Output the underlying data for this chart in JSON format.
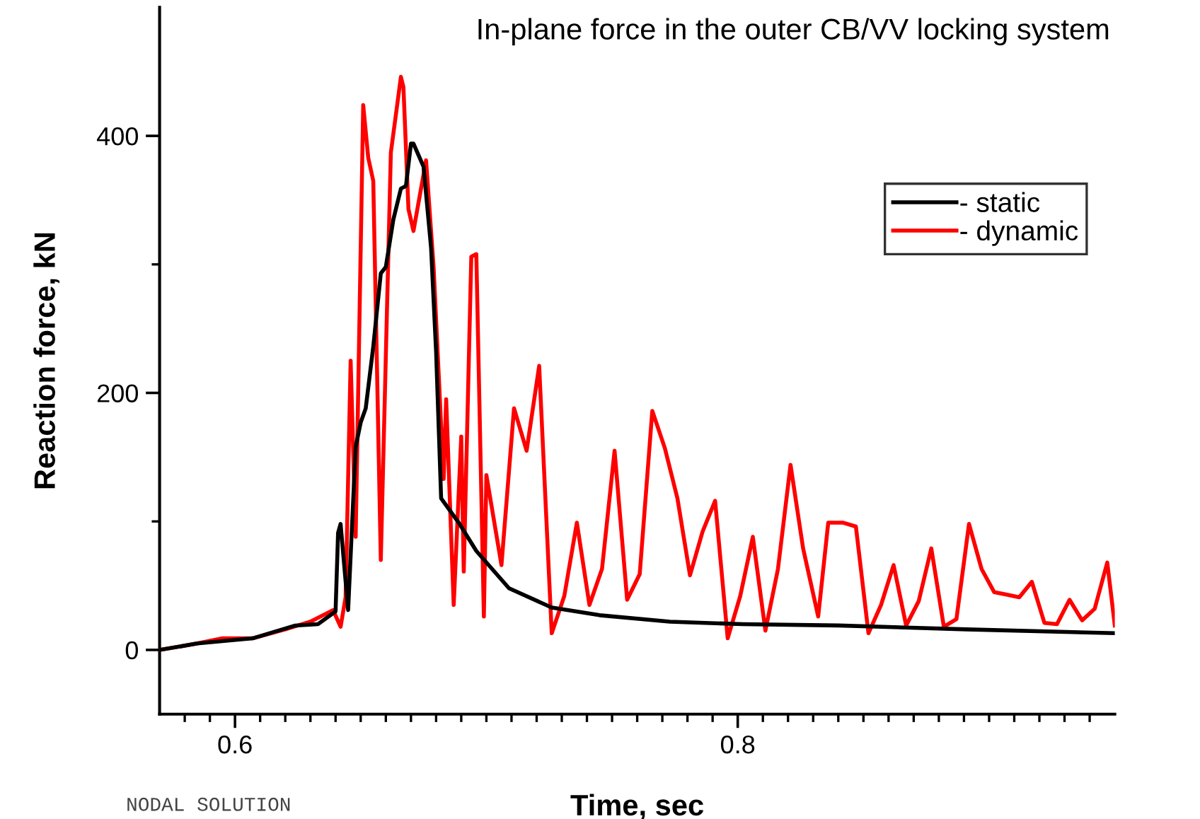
{
  "chart_data": {
    "type": "line",
    "title": "In-plane force in the outer CB/VV locking system",
    "xlabel": "Time, sec",
    "ylabel": "Reaction force, kN",
    "annotations": [
      "NODAL SOLUTION"
    ],
    "xlim": [
      0.57,
      0.95
    ],
    "ylim": [
      -50,
      500
    ],
    "xticks": [
      {
        "value": 0.58,
        "label": null
      },
      {
        "value": 0.59,
        "label": null
      },
      0.6,
      {
        "value": 0.61,
        "label": null
      },
      {
        "value": 0.62,
        "label": null
      },
      {
        "value": 0.63,
        "label": null
      },
      {
        "value": 0.64,
        "label": null
      },
      {
        "value": 0.65,
        "label": null
      },
      {
        "value": 0.66,
        "label": null
      },
      {
        "value": 0.67,
        "label": null
      },
      {
        "value": 0.68,
        "label": null
      },
      {
        "value": 0.69,
        "label": null
      },
      {
        "value": 0.7,
        "label": null
      },
      {
        "value": 0.71,
        "label": null
      },
      {
        "value": 0.72,
        "label": null
      },
      {
        "value": 0.73,
        "label": null
      },
      {
        "value": 0.74,
        "label": null
      },
      {
        "value": 0.75,
        "label": null
      },
      {
        "value": 0.76,
        "label": null
      },
      {
        "value": 0.77,
        "label": null
      },
      {
        "value": 0.78,
        "label": null
      },
      {
        "value": 0.79,
        "label": null
      },
      0.8,
      {
        "value": 0.81,
        "label": null
      },
      {
        "value": 0.82,
        "label": null
      },
      {
        "value": 0.83,
        "label": null
      },
      {
        "value": 0.84,
        "label": null
      },
      {
        "value": 0.85,
        "label": null
      },
      {
        "value": 0.86,
        "label": null
      },
      {
        "value": 0.87,
        "label": null
      },
      {
        "value": 0.88,
        "label": null
      },
      {
        "value": 0.89,
        "label": null
      },
      {
        "value": 0.9,
        "label": null
      },
      {
        "value": 0.91,
        "label": null
      },
      {
        "value": 0.92,
        "label": null
      },
      {
        "value": 0.93,
        "label": null
      },
      {
        "value": 0.94,
        "label": null
      }
    ],
    "yticks": [
      0,
      {
        "value": 100,
        "label": null
      },
      200,
      {
        "value": 300,
        "label": null
      },
      400
    ],
    "grid": false,
    "legend": "top right",
    "marker": "none",
    "line_style": "solid",
    "series": [
      {
        "name": "- static",
        "color": "#000000",
        "x": [
          0.57,
          0.585,
          0.607,
          0.624,
          0.633,
          0.64,
          0.641,
          0.642,
          0.645,
          0.648,
          0.65,
          0.652,
          0.655,
          0.658,
          0.66,
          0.663,
          0.666,
          0.668,
          0.67,
          0.671,
          0.675,
          0.678,
          0.68,
          0.682,
          0.689,
          0.696,
          0.709,
          0.726,
          0.745,
          0.773,
          0.802,
          0.84,
          0.891,
          0.95
        ],
        "values": [
          0,
          5,
          9,
          19,
          20,
          30,
          91,
          98,
          31,
          158,
          177,
          188,
          236,
          293,
          298,
          335,
          359,
          361,
          394,
          394,
          376,
          313,
          232,
          118,
          99,
          77,
          48,
          33,
          27,
          22,
          20,
          19,
          16,
          13
        ]
      },
      {
        "name": "- dynamic",
        "color": "#ff0000",
        "x": [
          0.57,
          0.585,
          0.595,
          0.607,
          0.62,
          0.63,
          0.639,
          0.642,
          0.644,
          0.646,
          0.648,
          0.651,
          0.653,
          0.655,
          0.658,
          0.662,
          0.666,
          0.667,
          0.669,
          0.671,
          0.676,
          0.679,
          0.683,
          0.684,
          0.687,
          0.69,
          0.691,
          0.694,
          0.696,
          0.699,
          0.7,
          0.706,
          0.711,
          0.716,
          0.721,
          0.726,
          0.731,
          0.736,
          0.741,
          0.746,
          0.751,
          0.756,
          0.761,
          0.766,
          0.771,
          0.776,
          0.781,
          0.786,
          0.791,
          0.796,
          0.801,
          0.806,
          0.811,
          0.816,
          0.821,
          0.826,
          0.832,
          0.836,
          0.842,
          0.847,
          0.852,
          0.857,
          0.862,
          0.867,
          0.872,
          0.877,
          0.882,
          0.887,
          0.892,
          0.897,
          0.902,
          0.907,
          0.912,
          0.917,
          0.922,
          0.927,
          0.932,
          0.937,
          0.942,
          0.947,
          0.95
        ],
        "values": [
          0,
          5,
          9,
          9,
          16,
          22,
          31,
          18,
          41,
          225,
          88,
          424,
          383,
          365,
          70,
          387,
          446,
          438,
          343,
          326,
          381,
          298,
          133,
          195,
          35,
          166,
          61,
          306,
          308,
          26,
          136,
          66,
          188,
          155,
          221,
          13,
          42,
          99,
          35,
          63,
          155,
          39,
          59,
          186,
          157,
          118,
          58,
          92,
          116,
          9,
          42,
          88,
          15,
          63,
          144,
          79,
          26,
          99,
          99,
          96,
          13,
          35,
          66,
          19,
          38,
          79,
          18,
          24,
          98,
          63,
          45,
          43,
          41,
          53,
          21,
          20,
          39,
          23,
          32,
          68,
          19
        ]
      }
    ]
  }
}
